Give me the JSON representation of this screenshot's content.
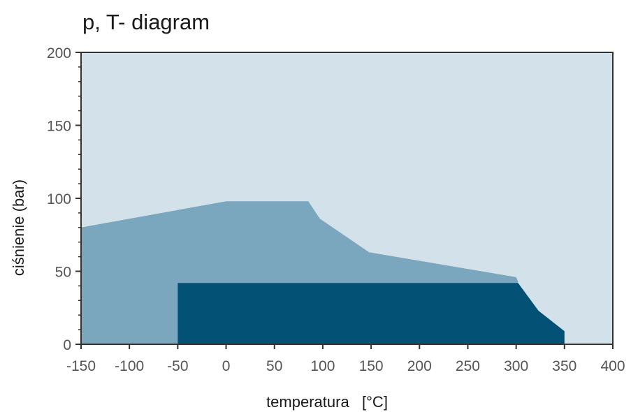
{
  "chart_data": {
    "type": "area",
    "title": "p, T- diagram",
    "xlabel": "temperatura   [°C]",
    "ylabel": "ciśnienie (bar)",
    "xlim": [
      -150,
      400
    ],
    "ylim": [
      0,
      200
    ],
    "xticks": [
      -150,
      -100,
      -50,
      0,
      50,
      100,
      150,
      200,
      250,
      300,
      350,
      400
    ],
    "xtick_labels": [
      "-150",
      "-100",
      "-50",
      "0",
      "50",
      "100",
      "150",
      "200",
      "250",
      "300",
      "350",
      "400"
    ],
    "yticks": [
      0,
      50,
      100,
      150,
      200
    ],
    "ytick_labels": [
      "0",
      "50",
      "100",
      "150",
      "200"
    ],
    "y_minor_step": 10,
    "grid": false,
    "colors": {
      "background": "#d3e2ea",
      "region_outer": "#7aa6be",
      "region_inner": "#035174",
      "axis": "#333333"
    },
    "series": [
      {
        "points": [
          {
            "x": -150,
            "y": 0
          },
          {
            "x": -150,
            "y": 80
          },
          {
            "x": 0,
            "y": 98
          },
          {
            "x": 85,
            "y": 98
          },
          {
            "x": 97,
            "y": 86
          },
          {
            "x": 148,
            "y": 63
          },
          {
            "x": 300,
            "y": 46
          },
          {
            "x": 302,
            "y": 43
          },
          {
            "x": 302,
            "y": 0
          }
        ]
      },
      {
        "points": [
          {
            "x": -50,
            "y": 0
          },
          {
            "x": -50,
            "y": 42
          },
          {
            "x": 302,
            "y": 42
          },
          {
            "x": 323,
            "y": 23
          },
          {
            "x": 350,
            "y": 9
          },
          {
            "x": 350,
            "y": 0
          }
        ]
      }
    ]
  }
}
